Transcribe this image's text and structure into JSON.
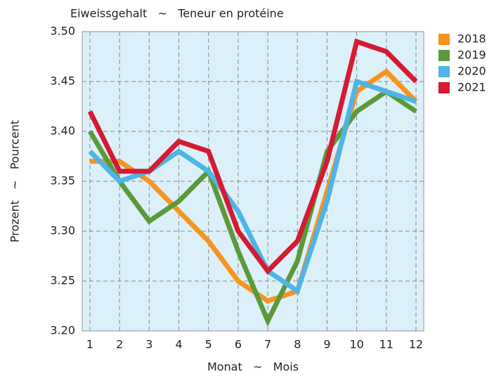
{
  "chart_data": {
    "type": "line",
    "title": "Eiweissgehalt   ~   Teneur en protéine",
    "x_label": "Monat   ~   Mois",
    "y_label": "Prozent   ~   Pourcent",
    "x": [
      1,
      2,
      3,
      4,
      5,
      6,
      7,
      8,
      9,
      10,
      11,
      12
    ],
    "xlim": [
      0.74,
      12.26
    ],
    "xticks": [
      1,
      2,
      3,
      4,
      5,
      6,
      7,
      8,
      9,
      10,
      11,
      12
    ],
    "ylim": [
      3.2,
      3.5
    ],
    "yticks": [
      {
        "value": 3.2,
        "label": "3.20"
      },
      3.25,
      {
        "value": 3.3,
        "label": "3.30"
      },
      3.35,
      {
        "value": 3.4,
        "label": "3.40"
      },
      3.45,
      {
        "value": 3.5,
        "label": "3.50"
      }
    ],
    "grid": true,
    "legend": "right",
    "series": [
      {
        "name": "2018",
        "color": "#f7941d",
        "values": [
          3.37,
          3.37,
          3.35,
          3.32,
          3.29,
          3.25,
          3.23,
          3.24,
          3.34,
          3.44,
          3.46,
          3.43
        ]
      },
      {
        "name": "2019",
        "color": "#5b9a3b",
        "values": [
          3.4,
          3.35,
          3.31,
          3.33,
          3.36,
          3.28,
          3.21,
          3.27,
          3.38,
          3.42,
          3.44,
          3.42
        ]
      },
      {
        "name": "2020",
        "color": "#4fb4e6",
        "values": [
          3.38,
          3.35,
          3.36,
          3.38,
          3.36,
          3.32,
          3.26,
          3.24,
          3.33,
          3.45,
          3.44,
          3.43
        ]
      },
      {
        "name": "2021",
        "color": "#d51a33",
        "values": [
          3.42,
          3.36,
          3.36,
          3.39,
          3.38,
          3.3,
          3.26,
          3.29,
          3.37,
          3.49,
          3.48,
          3.45
        ]
      }
    ]
  }
}
